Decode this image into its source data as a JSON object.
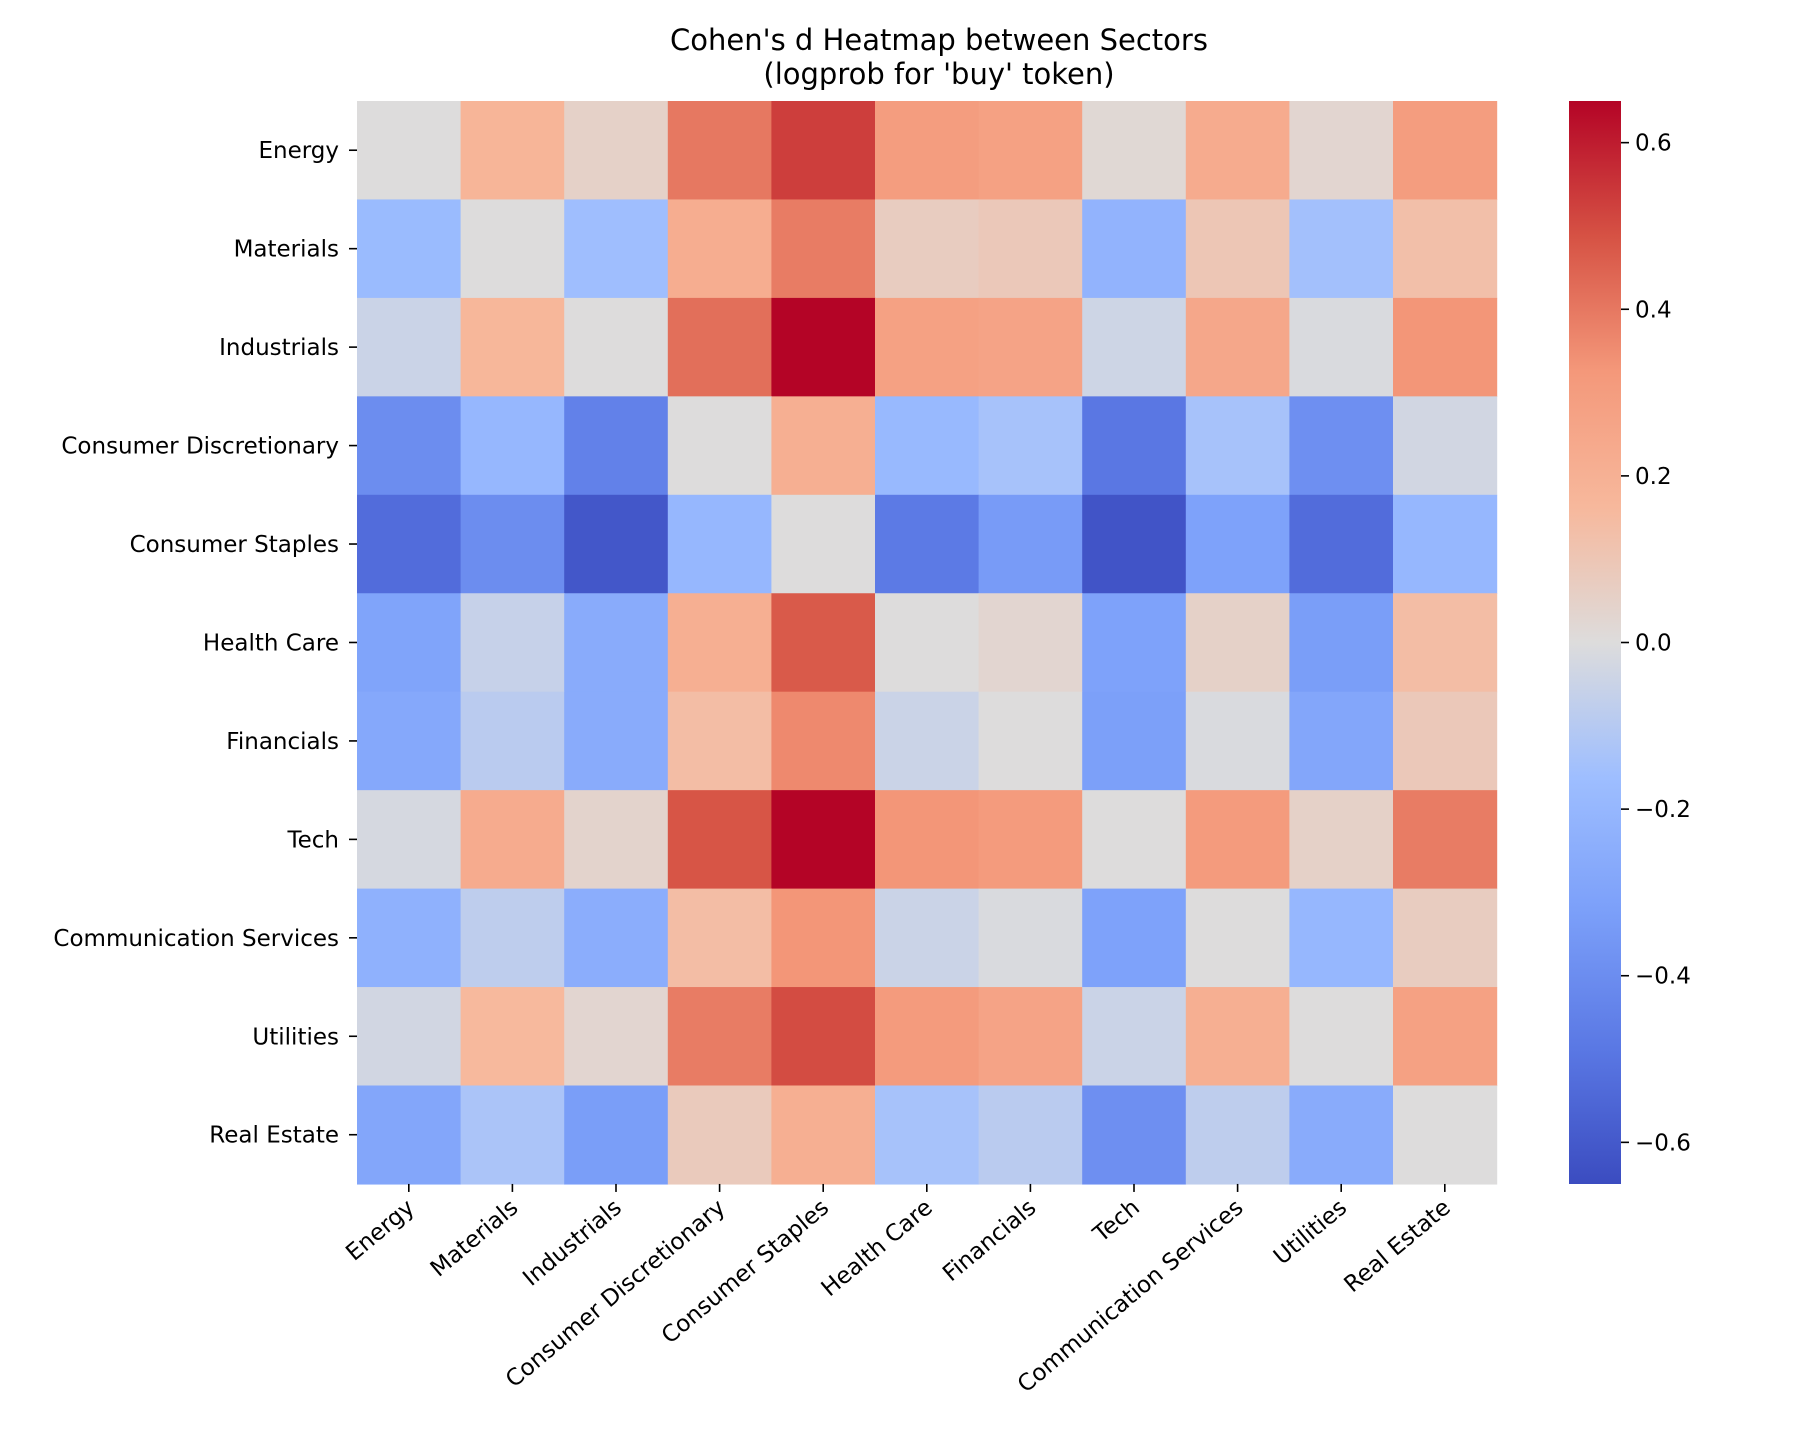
{
  "chart_data": {
    "type": "heatmap",
    "title": "Cohen's d Heatmap between Sectors",
    "subtitle": "(logprob for 'buy' token)",
    "xlabel": "",
    "ylabel": "",
    "colormap": "coolwarm",
    "vmin": -0.65,
    "vmax": 0.65,
    "colorbar_ticks": [
      0.6,
      0.4,
      0.2,
      0.0,
      -0.2,
      -0.4,
      -0.6
    ],
    "colorbar_tick_labels": [
      "0.6",
      "0.4",
      "0.2",
      "0.0",
      "−0.2",
      "−0.4",
      "−0.6"
    ],
    "rows": [
      "Energy",
      "Materials",
      "Industrials",
      "Consumer Discretionary",
      "Consumer Staples",
      "Health Care",
      "Financials",
      "Tech",
      "Communication Services",
      "Utilities",
      "Real Estate"
    ],
    "columns": [
      "Energy",
      "Materials",
      "Industrials",
      "Consumer Discretionary",
      "Consumer Staples",
      "Health Care",
      "Financials",
      "Tech",
      "Communication Services",
      "Utilities",
      "Real Estate"
    ],
    "values": [
      [
        0.0,
        0.18,
        0.05,
        0.4,
        0.53,
        0.3,
        0.28,
        0.02,
        0.23,
        0.03,
        0.3
      ],
      [
        -0.18,
        0.0,
        -0.16,
        0.22,
        0.39,
        0.07,
        0.09,
        -0.22,
        0.1,
        -0.15,
        0.13
      ],
      [
        -0.05,
        0.17,
        0.0,
        0.42,
        0.65,
        0.28,
        0.27,
        -0.04,
        0.25,
        -0.01,
        0.33
      ],
      [
        -0.4,
        -0.2,
        -0.45,
        0.0,
        0.21,
        -0.19,
        -0.14,
        -0.49,
        -0.14,
        -0.39,
        -0.03
      ],
      [
        -0.53,
        -0.4,
        -0.61,
        -0.2,
        0.0,
        -0.48,
        -0.34,
        -0.62,
        -0.31,
        -0.53,
        -0.2
      ],
      [
        -0.3,
        -0.06,
        -0.26,
        0.21,
        0.47,
        0.0,
        0.03,
        -0.31,
        0.05,
        -0.33,
        0.14
      ],
      [
        -0.28,
        -0.09,
        -0.26,
        0.14,
        0.36,
        -0.05,
        0.0,
        -0.32,
        -0.01,
        -0.29,
        0.09
      ],
      [
        -0.02,
        0.23,
        0.04,
        0.48,
        0.65,
        0.33,
        0.31,
        0.0,
        0.31,
        0.05,
        0.39
      ],
      [
        -0.23,
        -0.08,
        -0.25,
        0.14,
        0.33,
        -0.05,
        -0.01,
        -0.31,
        0.0,
        -0.2,
        0.07
      ],
      [
        -0.03,
        0.16,
        0.03,
        0.39,
        0.5,
        0.31,
        0.27,
        -0.05,
        0.21,
        0.0,
        0.28
      ],
      [
        -0.29,
        -0.13,
        -0.33,
        0.08,
        0.21,
        -0.14,
        -0.09,
        -0.39,
        -0.08,
        -0.26,
        0.0
      ]
    ]
  }
}
